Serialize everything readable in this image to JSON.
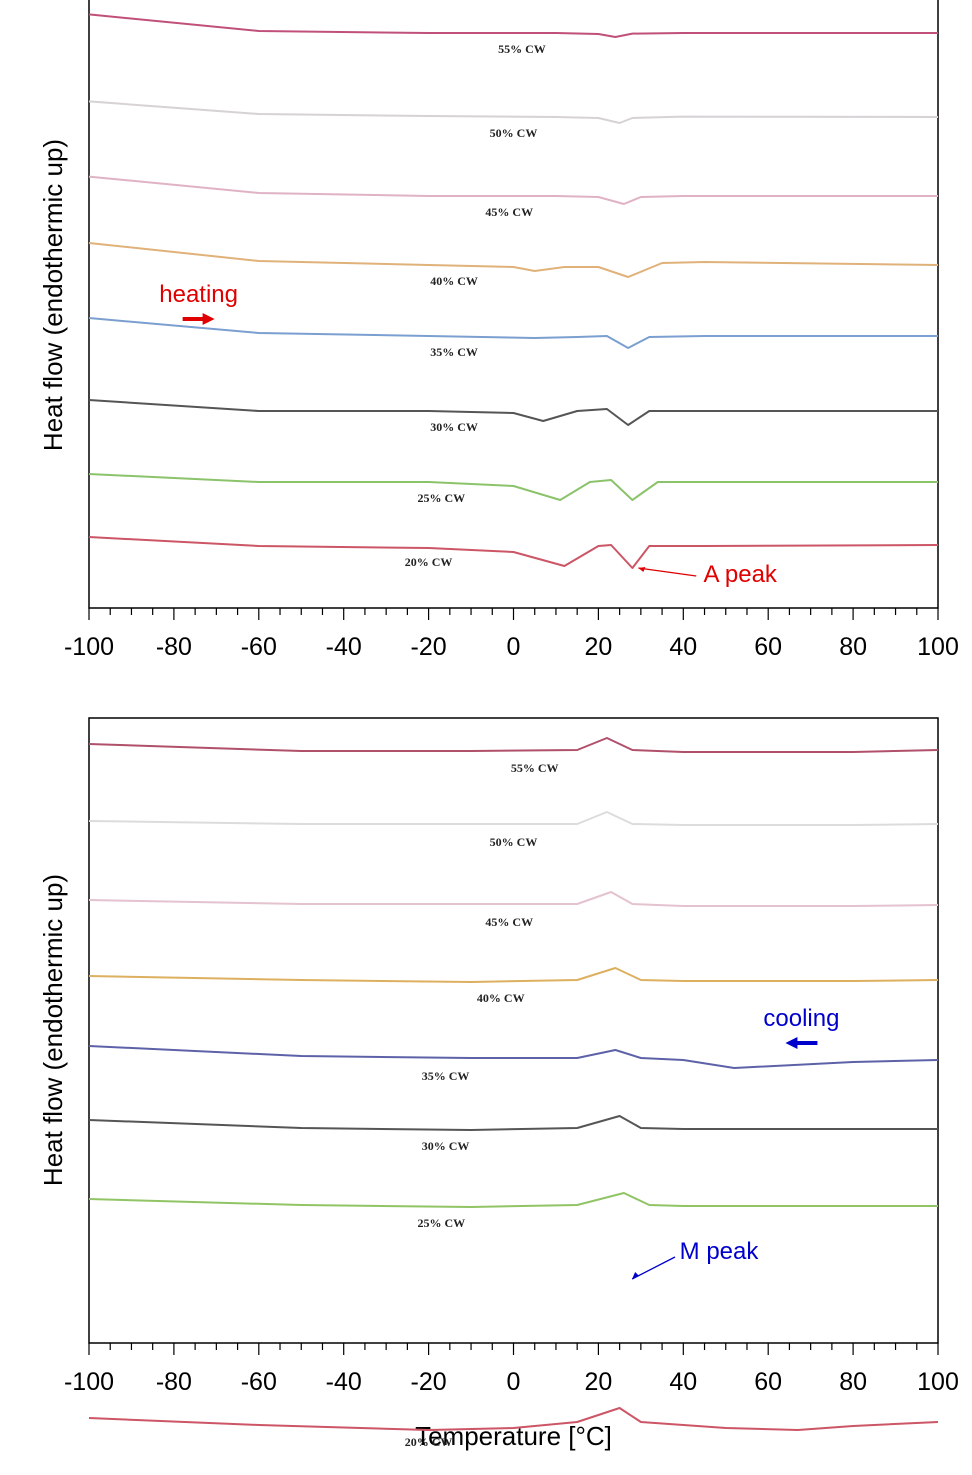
{
  "chart_data": [
    {
      "type": "line",
      "panel": "heating",
      "xlabel": "",
      "ylabel": "Heat flow (endothermic up)",
      "xlim": [
        -100,
        100
      ],
      "xticks": [
        "-100",
        "-80",
        "-60",
        "-40",
        "-20",
        "0",
        "20",
        "40",
        "60",
        "80",
        "100"
      ],
      "y_ticks_shown": false,
      "grid": false,
      "annotations": [
        {
          "text": "heating",
          "color": "#e00000",
          "arrow": "right",
          "x": -77
        },
        {
          "text": "A peak",
          "color": "#e00000",
          "arrow_to_x": 28,
          "x": 52
        }
      ],
      "series": [
        {
          "name": "55% CW",
          "color": "#c0507a",
          "label_x": 2,
          "x": [
            -100,
            -60,
            -20,
            10,
            20,
            24,
            28,
            40,
            100
          ],
          "y": [
            0.93,
            0.1,
            0.0,
            0.0,
            -0.05,
            -0.2,
            -0.03,
            0.0,
            0.0
          ]
        },
        {
          "name": "50% CW",
          "color": "#d7d2d5",
          "label_x": 0,
          "x": [
            -100,
            -60,
            -20,
            10,
            20,
            25,
            28,
            40,
            100
          ],
          "y": [
            0.78,
            0.15,
            0.05,
            0.0,
            -0.05,
            -0.3,
            -0.05,
            0.02,
            0.0
          ]
        },
        {
          "name": "45% CW",
          "color": "#e0b2c6",
          "label_x": -1,
          "x": [
            -100,
            -60,
            -20,
            10,
            20,
            26,
            30,
            40,
            100
          ],
          "y": [
            0.97,
            0.15,
            0.0,
            0.0,
            -0.05,
            -0.4,
            -0.05,
            0.0,
            0.0
          ]
        },
        {
          "name": "40% CW",
          "color": "#e0b27a",
          "label_x": -14,
          "x": [
            -100,
            -60,
            -20,
            0,
            5,
            12,
            20,
            27,
            35,
            45,
            100
          ],
          "y": [
            1.1,
            0.2,
            0.0,
            -0.1,
            -0.3,
            -0.1,
            -0.1,
            -0.6,
            0.1,
            0.15,
            0.0
          ]
        },
        {
          "name": "35% CW",
          "color": "#7b9fd0",
          "label_x": -14,
          "x": [
            -100,
            -60,
            -20,
            5,
            15,
            22,
            27,
            32,
            45,
            100
          ],
          "y": [
            0.9,
            0.15,
            0.0,
            -0.1,
            -0.05,
            0.0,
            -0.6,
            -0.05,
            0.0,
            0.0
          ]
        },
        {
          "name": "30% CW",
          "color": "#555555",
          "label_x": -14,
          "x": [
            -100,
            -60,
            -20,
            0,
            7,
            15,
            22,
            27,
            32,
            45,
            100
          ],
          "y": [
            0.55,
            0.0,
            0.0,
            -0.1,
            -0.5,
            0.0,
            0.1,
            -0.7,
            0.0,
            0.0,
            0.0
          ]
        },
        {
          "name": "25% CW",
          "color": "#8bc36b",
          "label_x": -17,
          "x": [
            -100,
            -60,
            -20,
            0,
            11,
            18,
            23,
            28,
            34,
            45,
            100
          ],
          "y": [
            0.4,
            0.0,
            0.0,
            -0.2,
            -0.9,
            0.0,
            0.1,
            -0.9,
            0.0,
            0.0,
            0.0
          ]
        },
        {
          "name": "20% CW",
          "color": "#cc5566",
          "label_x": -20,
          "x": [
            -100,
            -60,
            -20,
            0,
            12,
            20,
            23,
            28,
            32,
            45,
            100
          ],
          "y": [
            0.45,
            0.0,
            -0.1,
            -0.3,
            -1.0,
            0.0,
            0.05,
            -1.1,
            0.0,
            0.0,
            0.05
          ]
        }
      ]
    },
    {
      "type": "line",
      "panel": "cooling",
      "xlabel": "Temperature [°C]",
      "ylabel": "Heat flow (endothermic up)",
      "xlim": [
        -100,
        100
      ],
      "xticks": [
        "-100",
        "-80",
        "-60",
        "-40",
        "-20",
        "0",
        "20",
        "40",
        "60",
        "80",
        "100"
      ],
      "y_ticks_shown": false,
      "grid": false,
      "annotations": [
        {
          "text": "cooling",
          "color": "#0000cc",
          "arrow": "left",
          "x": 65
        },
        {
          "text": "M peak",
          "color": "#0000cc",
          "arrow_to_x": 27,
          "x": 47
        }
      ],
      "series": [
        {
          "name": "55% CW",
          "color": "#b0506a",
          "label_x": 5,
          "x": [
            -100,
            -50,
            -10,
            15,
            22,
            28,
            40,
            80,
            100
          ],
          "y": [
            0.3,
            -0.05,
            -0.05,
            0.0,
            0.6,
            0.0,
            -0.1,
            -0.1,
            0.0
          ]
        },
        {
          "name": "50% CW",
          "color": "#dcdcdc",
          "label_x": 0,
          "x": [
            -100,
            -50,
            -10,
            15,
            22,
            28,
            40,
            80,
            100
          ],
          "y": [
            0.15,
            0.0,
            0.0,
            0.0,
            0.6,
            0.0,
            -0.05,
            -0.05,
            0.0
          ]
        },
        {
          "name": "45% CW",
          "color": "#e4c2d0",
          "label_x": -1,
          "x": [
            -100,
            -50,
            -10,
            15,
            23,
            28,
            40,
            80,
            100
          ],
          "y": [
            0.2,
            0.0,
            0.0,
            0.0,
            0.6,
            0.0,
            -0.1,
            -0.1,
            -0.05
          ]
        },
        {
          "name": "40% CW",
          "color": "#ddb060",
          "label_x": -3,
          "x": [
            -100,
            -50,
            -10,
            15,
            24,
            30,
            40,
            80,
            100
          ],
          "y": [
            0.2,
            0.0,
            -0.1,
            0.0,
            0.6,
            0.0,
            -0.05,
            -0.05,
            0.0
          ]
        },
        {
          "name": "35% CW",
          "color": "#5d62a8",
          "label_x": -16,
          "x": [
            -100,
            -50,
            -10,
            15,
            24,
            30,
            40,
            52,
            80,
            100
          ],
          "y": [
            0.6,
            0.1,
            0.0,
            0.0,
            0.4,
            0.0,
            -0.1,
            -0.5,
            -0.2,
            -0.1
          ]
        },
        {
          "name": "30% CW",
          "color": "#555555",
          "label_x": -16,
          "x": [
            -100,
            -50,
            -10,
            15,
            25,
            30,
            40,
            80,
            100
          ],
          "y": [
            0.4,
            0.0,
            -0.1,
            0.0,
            0.6,
            0.0,
            -0.05,
            -0.05,
            -0.05
          ]
        },
        {
          "name": "25% CW",
          "color": "#91c465",
          "label_x": -17,
          "x": [
            -100,
            -50,
            -10,
            15,
            26,
            32,
            40,
            80,
            100
          ],
          "y": [
            0.3,
            0.0,
            -0.1,
            0.0,
            0.6,
            0.0,
            -0.05,
            -0.05,
            -0.05
          ]
        },
        {
          "name": "20% CW",
          "color": "#cc5566",
          "label_x": -20,
          "x": [
            -100,
            -60,
            -20,
            0,
            15,
            25,
            30,
            50,
            67,
            80,
            100
          ],
          "y": [
            0.3,
            -0.05,
            -0.3,
            -0.2,
            0.1,
            0.8,
            0.1,
            -0.2,
            -0.3,
            -0.1,
            0.1
          ]
        }
      ]
    }
  ]
}
